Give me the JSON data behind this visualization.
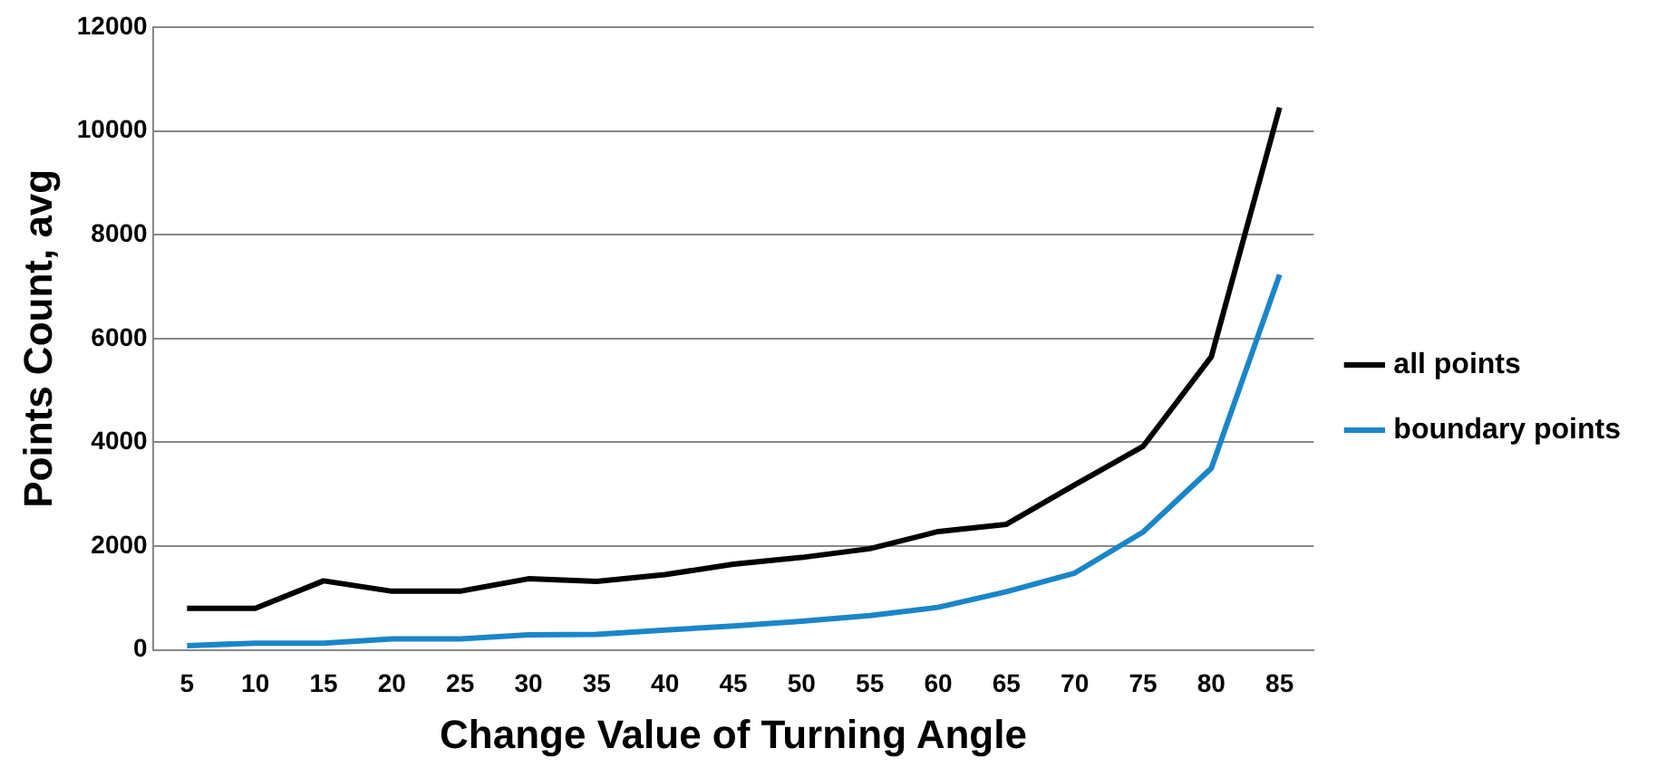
{
  "chart_data": {
    "type": "line",
    "xlabel": "Change Value of Turning Angle",
    "ylabel": "Points Count, avg",
    "categories": [
      "5",
      "10",
      "15",
      "20",
      "25",
      "30",
      "35",
      "40",
      "45",
      "50",
      "55",
      "60",
      "65",
      "70",
      "75",
      "80",
      "85"
    ],
    "series": [
      {
        "name": "all points",
        "color": "#000000",
        "values": [
          800,
          800,
          1330,
          1130,
          1130,
          1370,
          1320,
          1450,
          1650,
          1780,
          1950,
          2280,
          2420,
          3180,
          3920,
          5650,
          10450
        ]
      },
      {
        "name": "boundary points",
        "color": "#1a86c8",
        "values": [
          80,
          130,
          130,
          210,
          210,
          290,
          300,
          380,
          460,
          550,
          660,
          820,
          1120,
          1480,
          2270,
          3500,
          7230
        ]
      }
    ],
    "ylim": [
      0,
      12000
    ],
    "yticks": [
      0,
      2000,
      4000,
      6000,
      8000,
      10000,
      12000
    ],
    "grid": "y",
    "legend": "right",
    "marker": "none",
    "line_style": "solid"
  }
}
